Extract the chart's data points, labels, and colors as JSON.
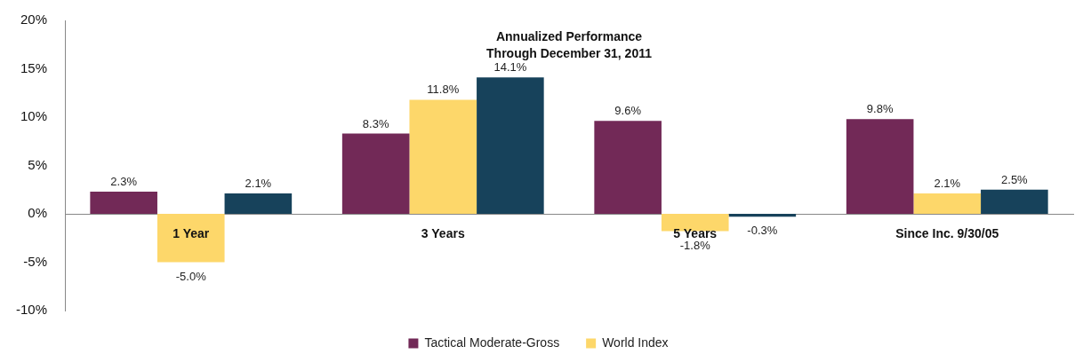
{
  "chart_data": {
    "type": "bar",
    "title": "Annualized Performance\nThrough December 31, 2011",
    "categories": [
      "1 Year",
      "3 Years",
      "5 Years",
      "Since Inc. 9/30/05"
    ],
    "series": [
      {
        "name": "Tactical Moderate-Gross",
        "color": "#722957",
        "values": [
          2.3,
          8.3,
          9.6,
          9.8
        ]
      },
      {
        "name": "World Index",
        "color": "#fdd76a",
        "values": [
          -5.0,
          11.8,
          -1.8,
          2.1
        ]
      },
      {
        "color": "#17425b",
        "values": [
          2.1,
          14.1,
          -0.3,
          2.5
        ]
      }
    ],
    "value_labels": [
      [
        "2.3%",
        "8.3%",
        "9.6%",
        "9.8%"
      ],
      [
        "-5.0%",
        "11.8%",
        "-1.8%",
        "2.1%"
      ],
      [
        "2.1%",
        "14.1%",
        "-0.3%",
        "2.5%"
      ]
    ],
    "ylim": [
      -10,
      20
    ],
    "yticks": [
      {
        "value": -10,
        "label": "-10%"
      },
      {
        "value": -5,
        "label": "-5%"
      },
      {
        "value": 0,
        "label": "0%"
      },
      {
        "value": 5,
        "label": "5%"
      },
      {
        "value": 10,
        "label": "10%"
      },
      {
        "value": 15,
        "label": "15%"
      },
      {
        "value": 20,
        "label": "20%"
      }
    ],
    "grid": false,
    "legend": "bottom"
  }
}
